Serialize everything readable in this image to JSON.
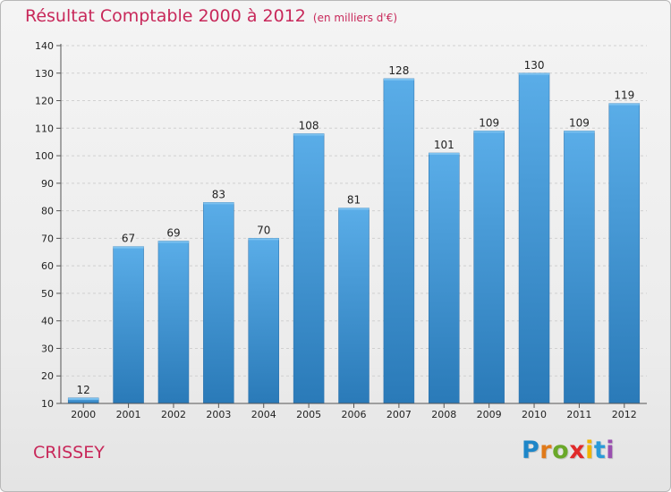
{
  "header": {
    "title": "Résultat Comptable 2000 à 2012",
    "subtitle": "(en milliers d'€)"
  },
  "footer": {
    "place": "CRISSEY",
    "logo_letters": [
      "P",
      "r",
      "o",
      "x",
      "i",
      "t",
      "i"
    ],
    "logo_colors": [
      "#1e86c8",
      "#e07a1a",
      "#6aa829",
      "#e02a2a",
      "#f0b400",
      "#2a9ad8",
      "#9a4fb0"
    ]
  },
  "chart_data": {
    "type": "bar",
    "categories": [
      "2000",
      "2001",
      "2002",
      "2003",
      "2004",
      "2005",
      "2006",
      "2007",
      "2008",
      "2009",
      "2010",
      "2011",
      "2012"
    ],
    "values": [
      12,
      67,
      69,
      83,
      70,
      108,
      81,
      128,
      101,
      109,
      130,
      109,
      119
    ],
    "data_labels": [
      "12",
      "67",
      "69",
      "83",
      "70",
      "108",
      "81",
      "128",
      "101",
      "109",
      "130",
      "109",
      "119"
    ],
    "yticks": [
      10,
      20,
      30,
      40,
      50,
      60,
      70,
      80,
      90,
      100,
      110,
      120,
      130,
      140
    ],
    "ylim": [
      10,
      140
    ],
    "grid": true,
    "bar_color_top": "#5aade8",
    "bar_color_bottom": "#2a7ab8"
  }
}
